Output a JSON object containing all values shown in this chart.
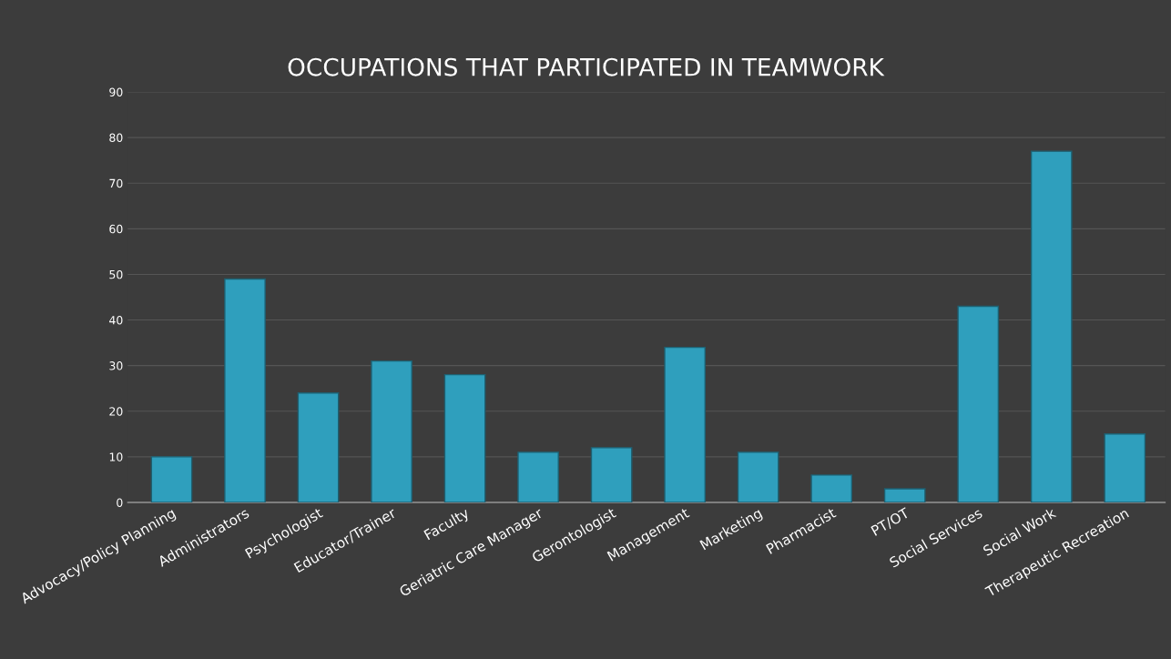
{
  "chart_data": {
    "type": "bar",
    "title": "OCCUPATIONS THAT PARTICIPATED IN TEAMWORK",
    "categories": [
      "Advocacy/Policy Planning",
      "Administrators",
      "Psychologist",
      "Educator/Trainer",
      "Faculty",
      "Geriatric Care Manager",
      "Gerontologist",
      "Management",
      "Marketing",
      "Pharmacist",
      "PT/OT",
      "Social Services",
      "Social Work",
      "Therapeutic Recreation"
    ],
    "values": [
      10,
      49,
      24,
      31,
      28,
      11,
      12,
      34,
      11,
      6,
      3,
      43,
      77,
      15
    ],
    "color": "#2f9fbd",
    "ylim": [
      0,
      90
    ],
    "yticks": [
      0,
      10,
      20,
      30,
      40,
      50,
      60,
      70,
      80,
      90
    ],
    "grid": "y"
  }
}
